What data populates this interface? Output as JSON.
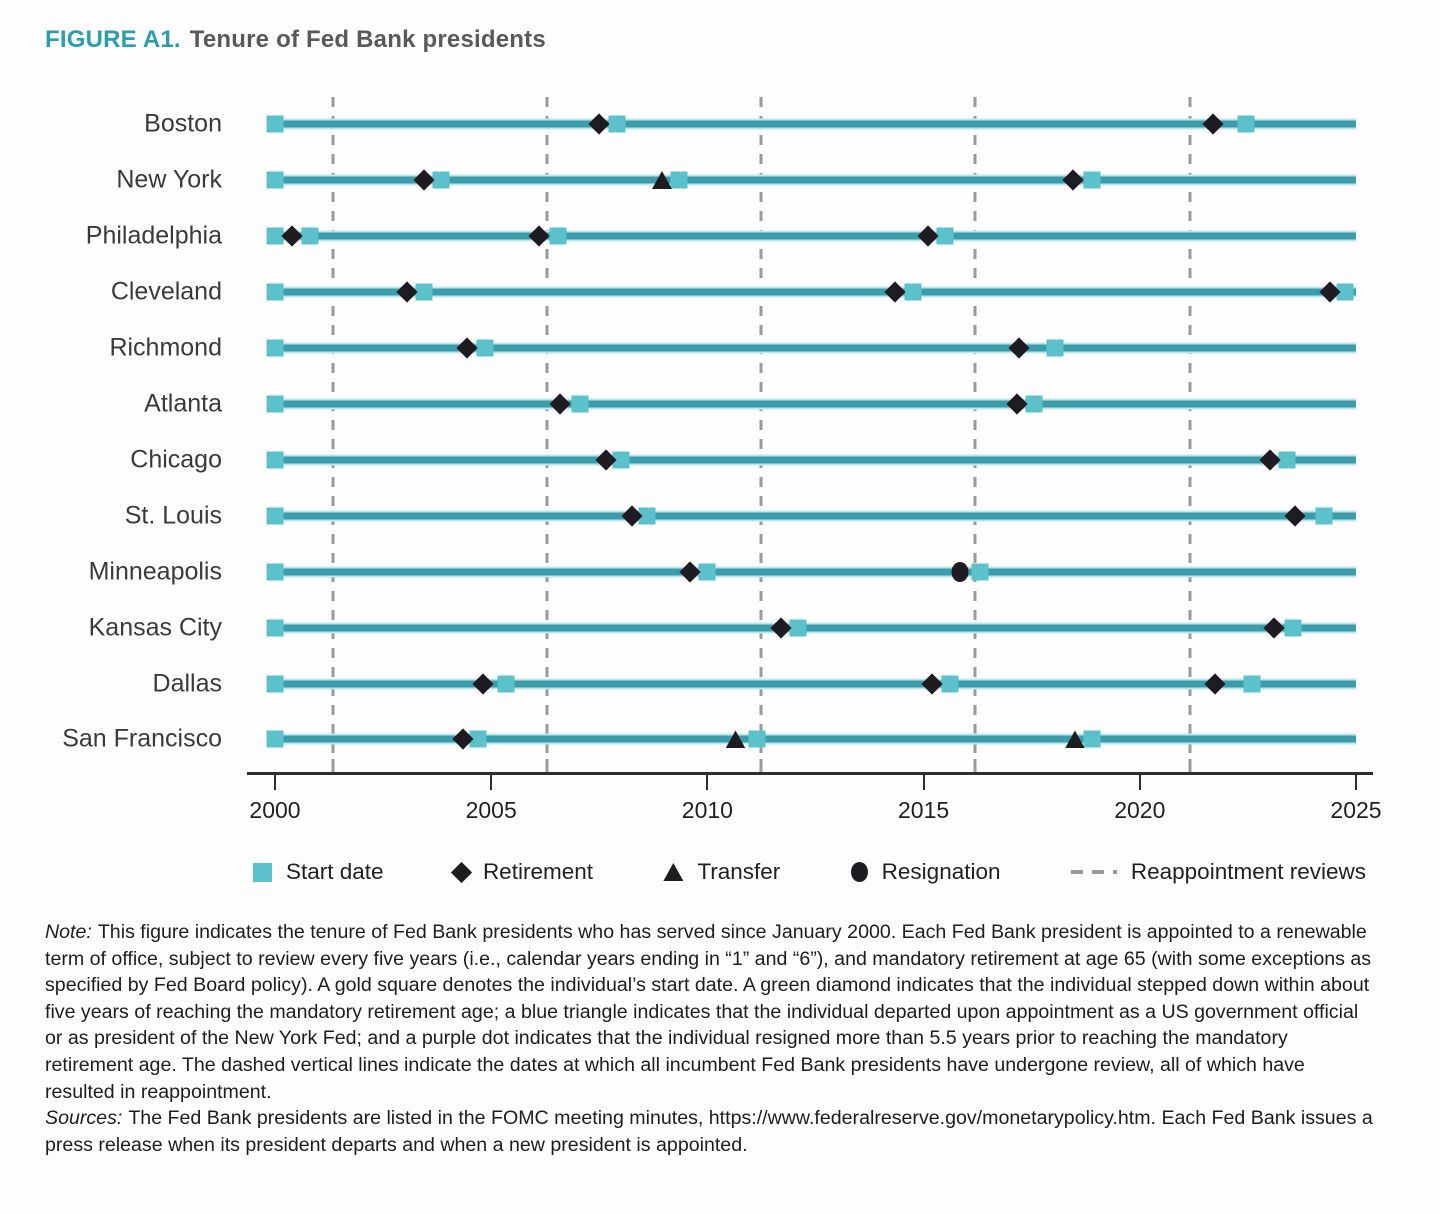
{
  "title": {
    "prefix": "FIGURE A1.",
    "text": "Tenure of Fed Bank presidents"
  },
  "colors": {
    "accent_teal": "#2a9daf",
    "start_square_teal": "#5bc2cb",
    "timeline_teal": "#3b9dac",
    "marker_black": "#1f1c21",
    "dash_gray": "#9a9a9a",
    "label_gray": "#3a3a3a"
  },
  "chart_data": {
    "type": "timeline",
    "title": "Tenure of Fed Bank presidents",
    "x_axis": {
      "min": 2000,
      "max": 2025,
      "tick_years": [
        2000,
        2005,
        2010,
        2015,
        2020,
        2025
      ],
      "tick_labels": [
        "2000",
        "2005",
        "2010",
        "2015",
        "2020",
        "2025"
      ]
    },
    "reappointment_review_years": [
      2001.35,
      2006.3,
      2011.25,
      2016.2,
      2021.15
    ],
    "event_types": [
      "start",
      "retirement",
      "transfer",
      "resignation"
    ],
    "banks": [
      {
        "label": "Boston",
        "events": [
          {
            "type": "start",
            "year": 2000
          },
          {
            "type": "retirement",
            "year": 2007.5
          },
          {
            "type": "start",
            "year": 2007.9
          },
          {
            "type": "retirement",
            "year": 2021.7
          },
          {
            "type": "start",
            "year": 2022.45
          }
        ]
      },
      {
        "label": "New York",
        "events": [
          {
            "type": "start",
            "year": 2000
          },
          {
            "type": "retirement",
            "year": 2003.45
          },
          {
            "type": "start",
            "year": 2003.85
          },
          {
            "type": "transfer",
            "year": 2008.95
          },
          {
            "type": "start",
            "year": 2009.35
          },
          {
            "type": "retirement",
            "year": 2018.45
          },
          {
            "type": "start",
            "year": 2018.9
          }
        ]
      },
      {
        "label": "Philadelphia",
        "events": [
          {
            "type": "start",
            "year": 2000
          },
          {
            "type": "retirement",
            "year": 2000.4
          },
          {
            "type": "start",
            "year": 2000.8
          },
          {
            "type": "retirement",
            "year": 2006.1
          },
          {
            "type": "start",
            "year": 2006.55
          },
          {
            "type": "retirement",
            "year": 2015.1
          },
          {
            "type": "start",
            "year": 2015.5
          }
        ]
      },
      {
        "label": "Cleveland",
        "events": [
          {
            "type": "start",
            "year": 2000
          },
          {
            "type": "retirement",
            "year": 2003.05
          },
          {
            "type": "start",
            "year": 2003.45
          },
          {
            "type": "retirement",
            "year": 2014.35
          },
          {
            "type": "start",
            "year": 2014.75
          },
          {
            "type": "retirement",
            "year": 2024.4
          },
          {
            "type": "start",
            "year": 2024.75
          }
        ]
      },
      {
        "label": "Richmond",
        "events": [
          {
            "type": "start",
            "year": 2000
          },
          {
            "type": "retirement",
            "year": 2004.45
          },
          {
            "type": "start",
            "year": 2004.85
          },
          {
            "type": "retirement",
            "year": 2017.2
          },
          {
            "type": "start",
            "year": 2018.05
          }
        ]
      },
      {
        "label": "Atlanta",
        "events": [
          {
            "type": "start",
            "year": 2000
          },
          {
            "type": "retirement",
            "year": 2006.6
          },
          {
            "type": "start",
            "year": 2007.05
          },
          {
            "type": "retirement",
            "year": 2017.15
          },
          {
            "type": "start",
            "year": 2017.55
          }
        ]
      },
      {
        "label": "Chicago",
        "events": [
          {
            "type": "start",
            "year": 2000
          },
          {
            "type": "retirement",
            "year": 2007.65
          },
          {
            "type": "start",
            "year": 2008.0
          },
          {
            "type": "retirement",
            "year": 2023.0
          },
          {
            "type": "start",
            "year": 2023.4
          }
        ]
      },
      {
        "label": "St. Louis",
        "events": [
          {
            "type": "start",
            "year": 2000
          },
          {
            "type": "retirement",
            "year": 2008.25
          },
          {
            "type": "start",
            "year": 2008.6
          },
          {
            "type": "retirement",
            "year": 2023.6
          },
          {
            "type": "start",
            "year": 2024.25
          }
        ]
      },
      {
        "label": "Minneapolis",
        "events": [
          {
            "type": "start",
            "year": 2000
          },
          {
            "type": "retirement",
            "year": 2009.6
          },
          {
            "type": "start",
            "year": 2010.0
          },
          {
            "type": "resignation",
            "year": 2015.85
          },
          {
            "type": "start",
            "year": 2016.3
          }
        ]
      },
      {
        "label": "Kansas City",
        "events": [
          {
            "type": "start",
            "year": 2000
          },
          {
            "type": "retirement",
            "year": 2011.7
          },
          {
            "type": "start",
            "year": 2012.1
          },
          {
            "type": "retirement",
            "year": 2023.1
          },
          {
            "type": "start",
            "year": 2023.55
          }
        ]
      },
      {
        "label": "Dallas",
        "events": [
          {
            "type": "start",
            "year": 2000
          },
          {
            "type": "retirement",
            "year": 2004.8
          },
          {
            "type": "start",
            "year": 2005.35
          },
          {
            "type": "retirement",
            "year": 2015.2
          },
          {
            "type": "start",
            "year": 2015.6
          },
          {
            "type": "retirement",
            "year": 2021.75
          },
          {
            "type": "start",
            "year": 2022.6
          }
        ]
      },
      {
        "label": "San Francisco",
        "events": [
          {
            "type": "start",
            "year": 2000
          },
          {
            "type": "retirement",
            "year": 2004.35
          },
          {
            "type": "start",
            "year": 2004.7
          },
          {
            "type": "transfer",
            "year": 2010.65
          },
          {
            "type": "start",
            "year": 2011.15
          },
          {
            "type": "transfer",
            "year": 2018.5
          },
          {
            "type": "start",
            "year": 2018.9
          }
        ]
      }
    ]
  },
  "legend": {
    "items": [
      {
        "marker": "start-square",
        "label": "Start date"
      },
      {
        "marker": "retirement-diamond",
        "label": "Retirement"
      },
      {
        "marker": "transfer-triangle",
        "label": "Transfer"
      },
      {
        "marker": "resignation-dot",
        "label": "Resignation"
      },
      {
        "marker": "review-dashes",
        "label": "Reappointment reviews"
      }
    ]
  },
  "note": {
    "label": "Note:",
    "text": "This figure indicates the tenure of Fed Bank presidents who has served since January 2000. Each Fed Bank president is appointed to a renewable term of office, subject to review every five years (i.e., calendar years ending in “1” and “6”), and mandatory retirement at age 65 (with some exceptions as specified by Fed Board policy). A gold square denotes the individual’s start date. A green diamond indicates that the individual stepped down within about five years of reaching the mandatory retirement age; a blue triangle indicates that the individual departed upon appointment as a US government official or as president of the New York Fed; and a purple dot indicates that the individual resigned more than 5.5 years prior to reaching the mandatory retirement age. The dashed vertical lines indicate the dates at which all incumbent Fed Bank presidents have undergone review, all of which have resulted in reappointment."
  },
  "sources": {
    "label": "Sources:",
    "text": "The Fed Bank presidents are listed in the FOMC meeting minutes, https://www.federalreserve.gov/monetarypolicy.htm. Each Fed Bank issues a press release when its president departs and when a new president is appointed."
  }
}
